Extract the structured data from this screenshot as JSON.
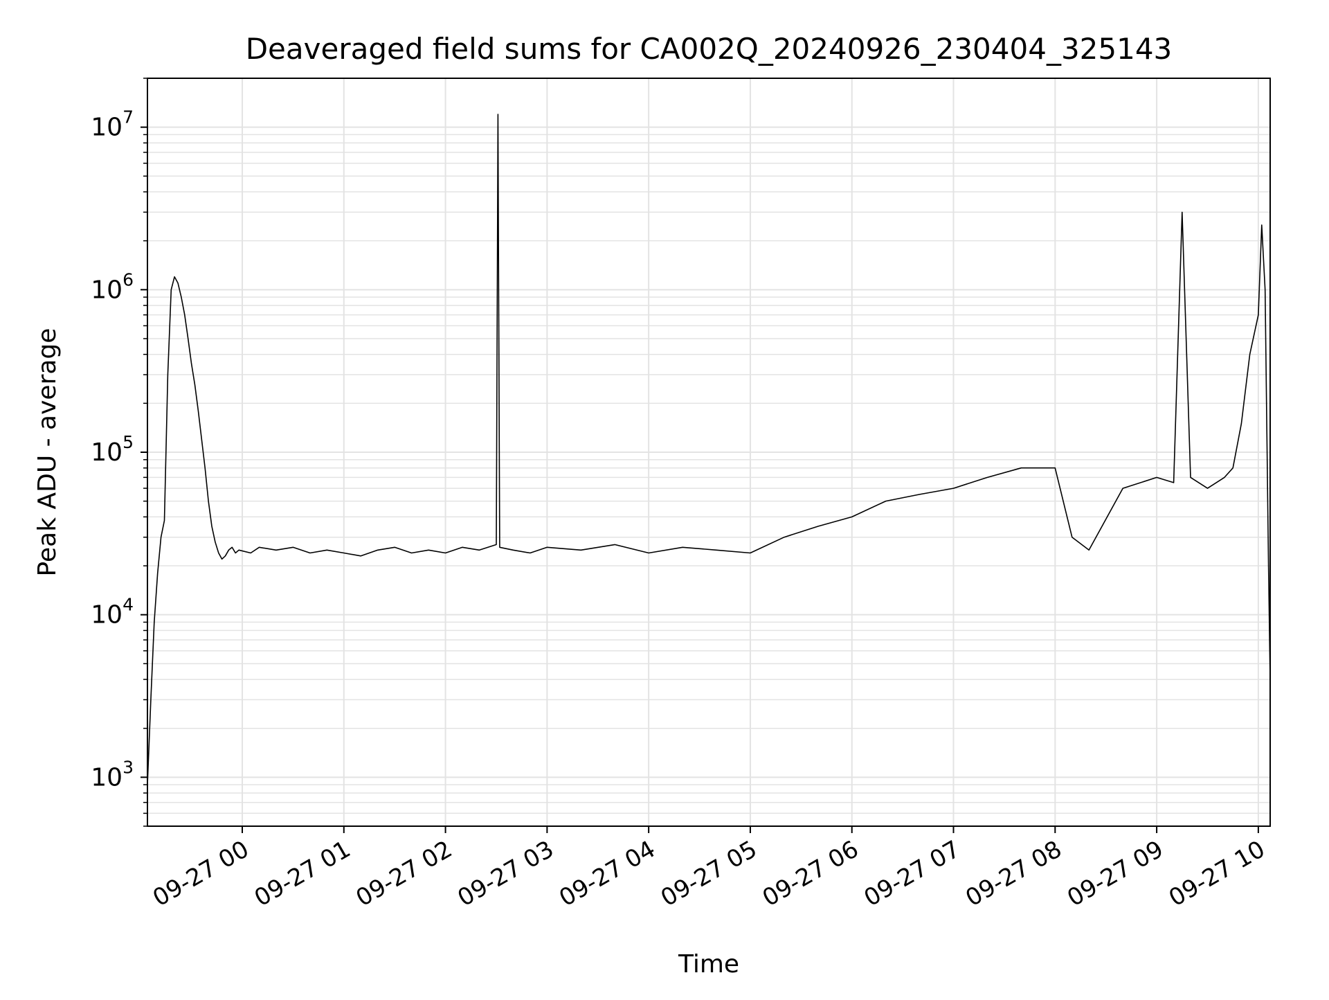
{
  "chart_data": {
    "type": "line",
    "title": "Deaveraged field sums for CA002Q_20240926_230404_325143",
    "xlabel": "Time",
    "ylabel": "Peak ADU - average",
    "yscale": "log",
    "ylim": [
      500,
      20000000
    ],
    "xlim": [
      "2024-09-26 23:04",
      "2024-09-27 10:07"
    ],
    "grid": true,
    "line_color": "#000000",
    "grid_color": "#e3e3e3",
    "x_ticks": [
      {
        "value": "2024-09-27 00:00",
        "label": "09-27 00"
      },
      {
        "value": "2024-09-27 01:00",
        "label": "09-27 01"
      },
      {
        "value": "2024-09-27 02:00",
        "label": "09-27 02"
      },
      {
        "value": "2024-09-27 03:00",
        "label": "09-27 03"
      },
      {
        "value": "2024-09-27 04:00",
        "label": "09-27 04"
      },
      {
        "value": "2024-09-27 05:00",
        "label": "09-27 05"
      },
      {
        "value": "2024-09-27 06:00",
        "label": "09-27 06"
      },
      {
        "value": "2024-09-27 07:00",
        "label": "09-27 07"
      },
      {
        "value": "2024-09-27 08:00",
        "label": "09-27 08"
      },
      {
        "value": "2024-09-27 09:00",
        "label": "09-27 09"
      },
      {
        "value": "2024-09-27 10:00",
        "label": "09-27 10"
      }
    ],
    "y_ticks": [
      {
        "value": 1000,
        "base": "10",
        "exp": "3"
      },
      {
        "value": 10000,
        "base": "10",
        "exp": "4"
      },
      {
        "value": 100000,
        "base": "10",
        "exp": "5"
      },
      {
        "value": 1000000,
        "base": "10",
        "exp": "6"
      },
      {
        "value": 10000000,
        "base": "10",
        "exp": "7"
      }
    ],
    "series": [
      {
        "x": [
          "2024-09-26 23:04",
          "2024-09-26 23:06",
          "2024-09-26 23:08",
          "2024-09-26 23:10",
          "2024-09-26 23:12",
          "2024-09-26 23:14",
          "2024-09-26 23:16",
          "2024-09-26 23:18",
          "2024-09-26 23:20",
          "2024-09-26 23:22",
          "2024-09-26 23:24",
          "2024-09-26 23:26",
          "2024-09-26 23:28",
          "2024-09-26 23:30",
          "2024-09-26 23:32",
          "2024-09-26 23:34",
          "2024-09-26 23:36",
          "2024-09-26 23:38",
          "2024-09-26 23:40",
          "2024-09-26 23:42",
          "2024-09-26 23:44",
          "2024-09-26 23:46",
          "2024-09-26 23:48",
          "2024-09-26 23:50",
          "2024-09-26 23:52",
          "2024-09-26 23:54",
          "2024-09-26 23:56",
          "2024-09-26 23:58",
          "2024-09-27 00:05",
          "2024-09-27 00:10",
          "2024-09-27 00:20",
          "2024-09-27 00:30",
          "2024-09-27 00:40",
          "2024-09-27 00:50",
          "2024-09-27 01:00",
          "2024-09-27 01:10",
          "2024-09-27 01:20",
          "2024-09-27 01:30",
          "2024-09-27 01:40",
          "2024-09-27 01:50",
          "2024-09-27 02:00",
          "2024-09-27 02:10",
          "2024-09-27 02:20",
          "2024-09-27 02:30",
          "2024-09-27 02:31",
          "2024-09-27 02:32",
          "2024-09-27 02:40",
          "2024-09-27 02:50",
          "2024-09-27 03:00",
          "2024-09-27 03:20",
          "2024-09-27 03:40",
          "2024-09-27 04:00",
          "2024-09-27 04:20",
          "2024-09-27 04:40",
          "2024-09-27 05:00",
          "2024-09-27 05:20",
          "2024-09-27 05:40",
          "2024-09-27 06:00",
          "2024-09-27 06:20",
          "2024-09-27 06:40",
          "2024-09-27 07:00",
          "2024-09-27 07:20",
          "2024-09-27 07:40",
          "2024-09-27 08:00",
          "2024-09-27 08:10",
          "2024-09-27 08:20",
          "2024-09-27 08:40",
          "2024-09-27 09:00",
          "2024-09-27 09:10",
          "2024-09-27 09:15",
          "2024-09-27 09:20",
          "2024-09-27 09:30",
          "2024-09-27 09:40",
          "2024-09-27 09:45",
          "2024-09-27 09:50",
          "2024-09-27 09:55",
          "2024-09-27 10:00",
          "2024-09-27 10:02",
          "2024-09-27 10:04",
          "2024-09-27 10:06",
          "2024-09-27 10:07"
        ],
        "y": [
          900,
          3000,
          9000,
          18000,
          30000,
          38000,
          300000,
          1000000,
          1200000,
          1100000,
          900000,
          700000,
          500000,
          350000,
          260000,
          180000,
          120000,
          80000,
          50000,
          35000,
          28000,
          24000,
          22000,
          23000,
          25000,
          26000,
          24000,
          25000,
          24000,
          26000,
          25000,
          26000,
          24000,
          25000,
          24000,
          23000,
          25000,
          26000,
          24000,
          25000,
          24000,
          26000,
          25000,
          27000,
          12000000,
          26000,
          25000,
          24000,
          26000,
          25000,
          27000,
          24000,
          26000,
          25000,
          24000,
          30000,
          35000,
          40000,
          50000,
          55000,
          60000,
          70000,
          80000,
          80000,
          30000,
          25000,
          60000,
          70000,
          65000,
          3000000,
          70000,
          60000,
          70000,
          80000,
          150000,
          400000,
          700000,
          2500000,
          1000000,
          20000,
          4000
        ]
      }
    ]
  }
}
